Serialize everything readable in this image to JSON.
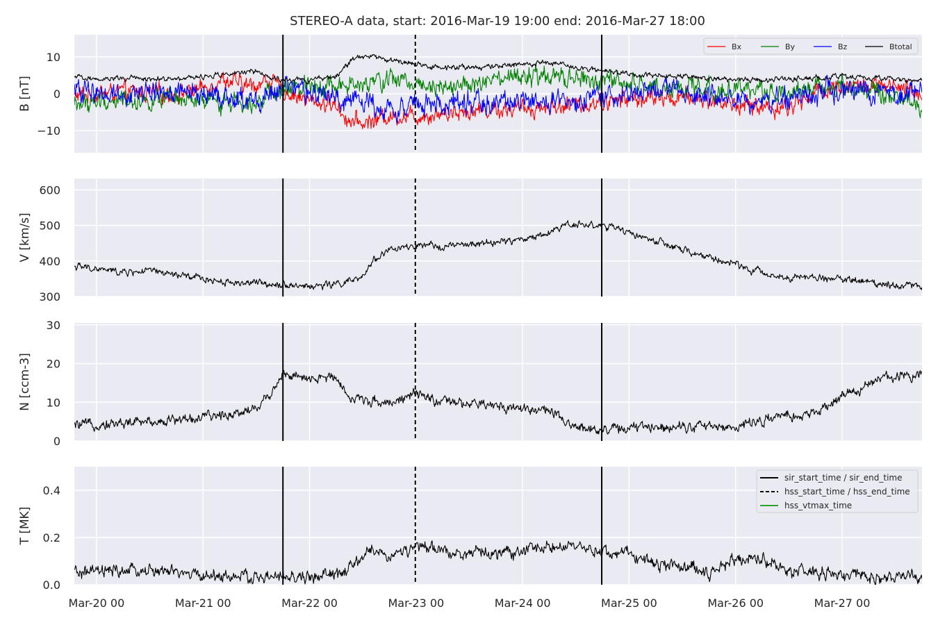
{
  "figure": {
    "title": "STEREO-A data, start: 2016-Mar-19 19:00  end: 2016-Mar-27 18:00"
  },
  "colors": {
    "plot_background": "#eaeaf2",
    "grid": "#ffffff",
    "Bx": "#ff0000",
    "By": "#008000",
    "Bz": "#0000ff",
    "Btotal": "#000000",
    "hss_vtmax_time": "#2ca02c"
  },
  "chart_data": {
    "type": "line",
    "x_axis": {
      "start": "2016-03-19T19:00",
      "end": "2016-03-27T18:00",
      "tick_labels": [
        "Mar-20 00",
        "Mar-21 00",
        "Mar-22 00",
        "Mar-23 00",
        "Mar-24 00",
        "Mar-25 00",
        "Mar-26 00",
        "Mar-27 00"
      ]
    },
    "event_lines": [
      {
        "name": "sir_start_time",
        "time": "2016-03-21T18:00",
        "style": "solid"
      },
      {
        "name": "hss_start_time",
        "time": "2016-03-22T23:50",
        "style": "dashed"
      },
      {
        "name": "sir_end_time",
        "time": "2016-03-24T17:50",
        "style": "solid"
      }
    ],
    "panels": [
      {
        "id": "b",
        "ylabel": "B [nT]",
        "ylim": [
          -16,
          16
        ],
        "yticks": [
          -10,
          0,
          10
        ],
        "ytick_labels": [
          "−10",
          "0",
          "10"
        ],
        "legend": {
          "entries": [
            "Bx",
            "By",
            "Bz",
            "Btotal"
          ],
          "placement": "top-right"
        },
        "series": [
          {
            "name": "Bx",
            "color": "#ff0000",
            "noise": 1.6,
            "points": [
              [
                "2016-03-19T19:00",
                -0.5
              ],
              [
                "2016-03-20T06:00",
                0.5
              ],
              [
                "2016-03-20T18:00",
                0.0
              ],
              [
                "2016-03-21T00:00",
                1.5
              ],
              [
                "2016-03-21T04:00",
                4.0
              ],
              [
                "2016-03-21T10:00",
                2.0
              ],
              [
                "2016-03-21T15:00",
                3.5
              ],
              [
                "2016-03-21T18:00",
                1.0
              ],
              [
                "2016-03-22T00:00",
                -2.0
              ],
              [
                "2016-03-22T06:00",
                -3.0
              ],
              [
                "2016-03-22T09:00",
                -7.5
              ],
              [
                "2016-03-22T12:00",
                -8.0
              ],
              [
                "2016-03-22T18:00",
                -6.0
              ],
              [
                "2016-03-23T00:00",
                -6.0
              ],
              [
                "2016-03-23T12:00",
                -4.5
              ],
              [
                "2016-03-24T00:00",
                -4.0
              ],
              [
                "2016-03-24T12:00",
                -3.0
              ],
              [
                "2016-03-25T00:00",
                -1.5
              ],
              [
                "2016-03-25T12:00",
                -1.0
              ],
              [
                "2016-03-25T18:00",
                -1.5
              ],
              [
                "2016-03-26T00:00",
                -3.0
              ],
              [
                "2016-03-26T06:00",
                -3.5
              ],
              [
                "2016-03-26T12:00",
                -4.0
              ],
              [
                "2016-03-26T18:00",
                0.5
              ],
              [
                "2016-03-27T00:00",
                2.5
              ],
              [
                "2016-03-27T12:00",
                1.5
              ],
              [
                "2016-03-27T18:00",
                0.0
              ]
            ]
          },
          {
            "name": "By",
            "color": "#008000",
            "noise": 1.8,
            "points": [
              [
                "2016-03-19T19:00",
                -3.0
              ],
              [
                "2016-03-20T06:00",
                -1.5
              ],
              [
                "2016-03-20T18:00",
                -2.0
              ],
              [
                "2016-03-21T00:00",
                -2.5
              ],
              [
                "2016-03-21T12:00",
                -1.5
              ],
              [
                "2016-03-21T18:00",
                0.5
              ],
              [
                "2016-03-22T00:00",
                3.0
              ],
              [
                "2016-03-22T06:00",
                2.0
              ],
              [
                "2016-03-22T12:00",
                2.0
              ],
              [
                "2016-03-22T18:00",
                4.0
              ],
              [
                "2016-03-23T00:00",
                3.0
              ],
              [
                "2016-03-23T12:00",
                2.0
              ],
              [
                "2016-03-24T00:00",
                4.5
              ],
              [
                "2016-03-24T12:00",
                4.0
              ],
              [
                "2016-03-25T00:00",
                2.5
              ],
              [
                "2016-03-25T12:00",
                1.5
              ],
              [
                "2016-03-26T00:00",
                1.0
              ],
              [
                "2016-03-26T12:00",
                0.5
              ],
              [
                "2016-03-27T00:00",
                2.5
              ],
              [
                "2016-03-27T18:00",
                -3.5
              ]
            ]
          },
          {
            "name": "Bz",
            "color": "#0000ff",
            "noise": 2.0,
            "points": [
              [
                "2016-03-19T19:00",
                1.0
              ],
              [
                "2016-03-20T06:00",
                0.0
              ],
              [
                "2016-03-20T18:00",
                0.5
              ],
              [
                "2016-03-21T06:00",
                -1.0
              ],
              [
                "2016-03-21T12:00",
                -2.5
              ],
              [
                "2016-03-21T18:00",
                1.5
              ],
              [
                "2016-03-22T00:00",
                0.0
              ],
              [
                "2016-03-22T12:00",
                -2.0
              ],
              [
                "2016-03-22T18:00",
                -4.0
              ],
              [
                "2016-03-23T00:00",
                -3.0
              ],
              [
                "2016-03-23T12:00",
                -2.5
              ],
              [
                "2016-03-24T00:00",
                -2.0
              ],
              [
                "2016-03-24T12:00",
                -3.0
              ],
              [
                "2016-03-25T00:00",
                0.5
              ],
              [
                "2016-03-25T12:00",
                1.0
              ],
              [
                "2016-03-26T00:00",
                -2.0
              ],
              [
                "2016-03-26T12:00",
                -1.5
              ],
              [
                "2016-03-27T00:00",
                1.5
              ],
              [
                "2016-03-27T18:00",
                -0.5
              ]
            ]
          },
          {
            "name": "Btotal",
            "color": "#000000",
            "noise": 0.5,
            "points": [
              [
                "2016-03-19T19:00",
                4.3
              ],
              [
                "2016-03-20T12:00",
                4.0
              ],
              [
                "2016-03-21T00:00",
                4.5
              ],
              [
                "2016-03-21T06:00",
                5.5
              ],
              [
                "2016-03-21T12:00",
                5.8
              ],
              [
                "2016-03-21T16:00",
                4.0
              ],
              [
                "2016-03-22T00:00",
                3.5
              ],
              [
                "2016-03-22T06:00",
                5.0
              ],
              [
                "2016-03-22T10:00",
                9.5
              ],
              [
                "2016-03-22T14:00",
                10.2
              ],
              [
                "2016-03-22T20:00",
                8.5
              ],
              [
                "2016-03-23T06:00",
                7.0
              ],
              [
                "2016-03-23T12:00",
                7.2
              ],
              [
                "2016-03-24T00:00",
                7.8
              ],
              [
                "2016-03-24T06:00",
                8.5
              ],
              [
                "2016-03-24T12:00",
                7.0
              ],
              [
                "2016-03-25T00:00",
                5.5
              ],
              [
                "2016-03-25T12:00",
                4.5
              ],
              [
                "2016-03-26T00:00",
                3.8
              ],
              [
                "2016-03-26T12:00",
                4.0
              ],
              [
                "2016-03-27T00:00",
                4.5
              ],
              [
                "2016-03-27T18:00",
                3.5
              ]
            ]
          }
        ]
      },
      {
        "id": "v",
        "ylabel": "V [km/s]",
        "ylim": [
          300,
          632
        ],
        "yticks": [
          300,
          400,
          500,
          600
        ],
        "ytick_labels": [
          "300",
          "400",
          "500",
          "600"
        ],
        "series": [
          {
            "name": "V",
            "color": "#000000",
            "noise": 7,
            "points": [
              [
                "2016-03-19T19:00",
                385
              ],
              [
                "2016-03-20T06:00",
                368
              ],
              [
                "2016-03-20T12:00",
                372
              ],
              [
                "2016-03-20T18:00",
                360
              ],
              [
                "2016-03-21T00:00",
                350
              ],
              [
                "2016-03-21T06:00",
                340
              ],
              [
                "2016-03-21T12:00",
                338
              ],
              [
                "2016-03-21T18:00",
                335
              ],
              [
                "2016-03-22T00:00",
                328
              ],
              [
                "2016-03-22T06:00",
                335
              ],
              [
                "2016-03-22T12:00",
                350
              ],
              [
                "2016-03-22T14:00",
                400
              ],
              [
                "2016-03-22T18:00",
                432
              ],
              [
                "2016-03-23T00:00",
                440
              ],
              [
                "2016-03-23T12:00",
                445
              ],
              [
                "2016-03-24T00:00",
                460
              ],
              [
                "2016-03-24T06:00",
                480
              ],
              [
                "2016-03-24T10:00",
                505
              ],
              [
                "2016-03-24T18:00",
                500
              ],
              [
                "2016-03-25T00:00",
                480
              ],
              [
                "2016-03-25T06:00",
                455
              ],
              [
                "2016-03-25T12:00",
                430
              ],
              [
                "2016-03-26T00:00",
                390
              ],
              [
                "2016-03-26T06:00",
                365
              ],
              [
                "2016-03-26T12:00",
                355
              ],
              [
                "2016-03-27T00:00",
                350
              ],
              [
                "2016-03-27T10:00",
                335
              ],
              [
                "2016-03-27T18:00",
                330
              ]
            ]
          }
        ]
      },
      {
        "id": "n",
        "ylabel": "N [ccm-3]",
        "ylim": [
          0,
          30.5
        ],
        "yticks": [
          0,
          10,
          20,
          30
        ],
        "ytick_labels": [
          "0",
          "10",
          "20",
          "30"
        ],
        "series": [
          {
            "name": "N",
            "color": "#000000",
            "noise": 0.9,
            "points": [
              [
                "2016-03-19T19:00",
                4.0
              ],
              [
                "2016-03-20T12:00",
                5.0
              ],
              [
                "2016-03-21T00:00",
                6.0
              ],
              [
                "2016-03-21T06:00",
                7.0
              ],
              [
                "2016-03-21T12:00",
                8.5
              ],
              [
                "2016-03-21T15:00",
                12.0
              ],
              [
                "2016-03-21T18:00",
                17.5
              ],
              [
                "2016-03-22T00:00",
                15.5
              ],
              [
                "2016-03-22T06:00",
                17.0
              ],
              [
                "2016-03-22T09:00",
                11.0
              ],
              [
                "2016-03-22T18:00",
                10.0
              ],
              [
                "2016-03-23T00:00",
                12.0
              ],
              [
                "2016-03-23T06:00",
                10.0
              ],
              [
                "2016-03-24T00:00",
                8.5
              ],
              [
                "2016-03-24T06:00",
                8.0
              ],
              [
                "2016-03-24T10:00",
                4.0
              ],
              [
                "2016-03-24T18:00",
                3.0
              ],
              [
                "2016-03-25T12:00",
                4.0
              ],
              [
                "2016-03-26T00:00",
                3.5
              ],
              [
                "2016-03-26T06:00",
                5.5
              ],
              [
                "2016-03-26T18:00",
                7.0
              ],
              [
                "2016-03-27T00:00",
                11.5
              ],
              [
                "2016-03-27T10:00",
                16.5
              ],
              [
                "2016-03-27T18:00",
                17.5
              ]
            ]
          }
        ]
      },
      {
        "id": "t",
        "ylabel": "T [MK]",
        "ylim": [
          0,
          0.5
        ],
        "yticks": [
          0,
          0.2,
          0.4
        ],
        "ytick_labels": [
          "0.0",
          "0.2",
          "0.4"
        ],
        "legend": {
          "entries": [
            "sir_start_time / sir_end_time",
            "hss_start_time / hss_end_time",
            "hss_vtmax_time"
          ],
          "placement": "top-right"
        },
        "series": [
          {
            "name": "T",
            "color": "#000000",
            "noise": 0.018,
            "points": [
              [
                "2016-03-19T19:00",
                0.05
              ],
              [
                "2016-03-20T12:00",
                0.06
              ],
              [
                "2016-03-21T00:00",
                0.04
              ],
              [
                "2016-03-21T12:00",
                0.03
              ],
              [
                "2016-03-22T00:00",
                0.03
              ],
              [
                "2016-03-22T08:00",
                0.05
              ],
              [
                "2016-03-22T14:00",
                0.15
              ],
              [
                "2016-03-22T18:00",
                0.12
              ],
              [
                "2016-03-23T00:00",
                0.16
              ],
              [
                "2016-03-23T12:00",
                0.13
              ],
              [
                "2016-03-24T00:00",
                0.14
              ],
              [
                "2016-03-24T06:00",
                0.17
              ],
              [
                "2016-03-24T12:00",
                0.15
              ],
              [
                "2016-03-25T00:00",
                0.13
              ],
              [
                "2016-03-25T06:00",
                0.09
              ],
              [
                "2016-03-25T12:00",
                0.08
              ],
              [
                "2016-03-25T18:00",
                0.05
              ],
              [
                "2016-03-26T00:00",
                0.11
              ],
              [
                "2016-03-26T06:00",
                0.11
              ],
              [
                "2016-03-26T12:00",
                0.06
              ],
              [
                "2016-03-27T00:00",
                0.04
              ],
              [
                "2016-03-27T06:00",
                0.03
              ],
              [
                "2016-03-27T18:00",
                0.03
              ]
            ]
          }
        ]
      }
    ]
  }
}
